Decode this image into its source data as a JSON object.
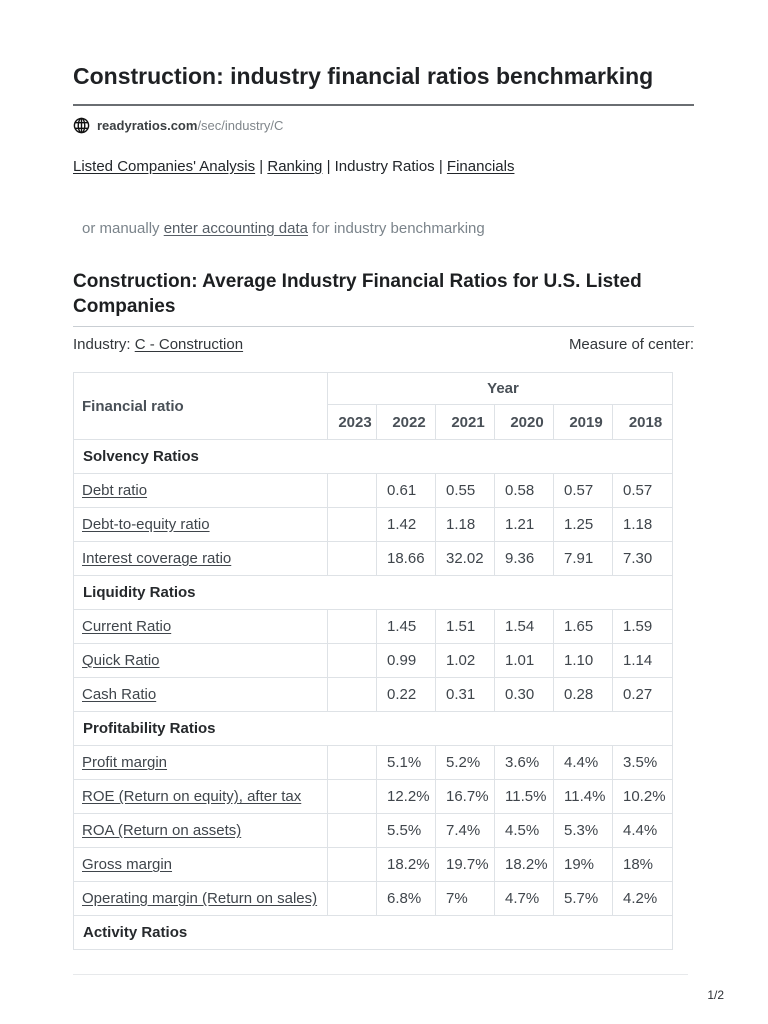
{
  "title": "Construction: industry financial ratios benchmarking",
  "source": {
    "domain": "readyratios.com",
    "path": "/sec/industry/C"
  },
  "nav": {
    "separator": "|",
    "items": [
      {
        "label": "Listed Companies' Analysis",
        "underline": true
      },
      {
        "label": "Ranking",
        "underline": true
      },
      {
        "label": "Industry Ratios",
        "underline": false
      },
      {
        "label": "Financials",
        "underline": true
      }
    ]
  },
  "manual_line": {
    "prefix": "or manually ",
    "link": "enter accounting data",
    "suffix": " for industry benchmarking"
  },
  "section_heading": "Construction: Average Industry Financial Ratios for U.S. Listed Companies",
  "industry": {
    "label": "Industry: ",
    "link": "C - Construction"
  },
  "measure_label": "Measure of center:",
  "table": {
    "ratio_header": "Financial ratio",
    "year_group_header": "Year",
    "years": [
      "2023",
      "2022",
      "2021",
      "2020",
      "2019",
      "2018"
    ],
    "sections": [
      {
        "title": "Solvency Ratios",
        "rows": [
          {
            "label": "Debt ratio",
            "values": [
              "",
              "0.61",
              "0.55",
              "0.58",
              "0.57",
              "0.57"
            ]
          },
          {
            "label": "Debt-to-equity ratio",
            "values": [
              "",
              "1.42",
              "1.18",
              "1.21",
              "1.25",
              "1.18"
            ]
          },
          {
            "label": "Interest coverage ratio",
            "values": [
              "",
              "18.66",
              "32.02",
              "9.36",
              "7.91",
              "7.30"
            ]
          }
        ]
      },
      {
        "title": "Liquidity Ratios",
        "rows": [
          {
            "label": "Current Ratio",
            "values": [
              "",
              "1.45",
              "1.51",
              "1.54",
              "1.65",
              "1.59"
            ]
          },
          {
            "label": "Quick Ratio",
            "values": [
              "",
              "0.99",
              "1.02",
              "1.01",
              "1.10",
              "1.14"
            ]
          },
          {
            "label": "Cash Ratio",
            "values": [
              "",
              "0.22",
              "0.31",
              "0.30",
              "0.28",
              "0.27"
            ]
          }
        ]
      },
      {
        "title": "Profitability Ratios",
        "rows": [
          {
            "label": "Profit margin",
            "values": [
              "",
              "5.1%",
              "5.2%",
              "3.6%",
              "4.4%",
              "3.5%"
            ]
          },
          {
            "label": "ROE (Return on equity), after tax",
            "values": [
              "",
              "12.2%",
              "16.7%",
              "11.5%",
              "11.4%",
              "10.2%"
            ]
          },
          {
            "label": "ROA (Return on assets)",
            "values": [
              "",
              "5.5%",
              "7.4%",
              "4.5%",
              "5.3%",
              "4.4%"
            ]
          },
          {
            "label": "Gross margin",
            "values": [
              "",
              "18.2%",
              "19.7%",
              "18.2%",
              "19%",
              "18%"
            ]
          },
          {
            "label": "Operating margin (Return on sales)",
            "values": [
              "",
              "6.8%",
              "7%",
              "4.7%",
              "5.7%",
              "4.2%"
            ]
          }
        ]
      },
      {
        "title": "Activity Ratios",
        "rows": []
      }
    ]
  },
  "page_indicator": "1/2",
  "colors": {
    "table_border": "#dee2e6",
    "table_text": "#495057",
    "title_text": "#1f2124",
    "muted_text": "#7b848b",
    "rule_dark": "#6a6e72",
    "rule_light": "#c9ced3"
  }
}
